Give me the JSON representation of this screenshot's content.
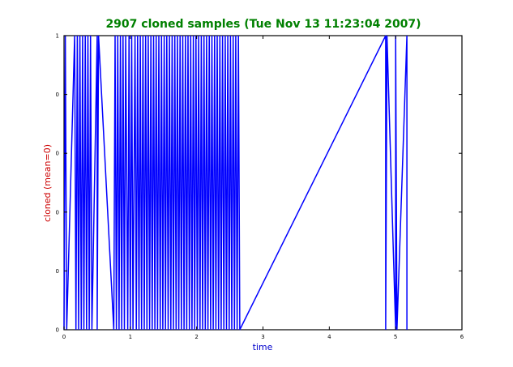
{
  "chart_data": {
    "type": "line",
    "title": "2907 cloned samples (Tue Nov 13 11:23:04 2007)",
    "xlabel": "time",
    "ylabel": "cloned (mean=0)",
    "xlim": [
      0,
      6
    ],
    "ylim": [
      0,
      1
    ],
    "xticks": [
      "0",
      "1",
      "2",
      "3",
      "4",
      "5",
      "6"
    ],
    "yticks": [
      "0",
      "0",
      "0",
      "0",
      "0",
      "1"
    ],
    "grid": false,
    "colors": {
      "title": "#008000",
      "xlabel": "#0000cc",
      "ylabel": "#cc0000",
      "line": "#0000ff",
      "frame": "#000000"
    },
    "series": [
      {
        "x": [
          0.0,
          0.02,
          0.04,
          0.16,
          0.18,
          0.2,
          0.22,
          0.24,
          0.26,
          0.28,
          0.3,
          0.32,
          0.34,
          0.36,
          0.38,
          0.4,
          0.42,
          0.5,
          0.5,
          0.52,
          0.75,
          0.77,
          0.79,
          0.81,
          0.83,
          0.85,
          0.87,
          0.89,
          0.91,
          0.93,
          0.96,
          0.98,
          1.0,
          1.02,
          1.04,
          1.07,
          1.09,
          1.11,
          1.13,
          1.15,
          1.17,
          1.19,
          1.21,
          1.23,
          1.25,
          1.27,
          1.29,
          1.31,
          1.33,
          1.35,
          1.37,
          1.39,
          1.41,
          1.43,
          1.45,
          1.47,
          1.49,
          1.51,
          1.53,
          1.55,
          1.57,
          1.59,
          1.61,
          1.63,
          1.65,
          1.67,
          1.69,
          1.71,
          1.73,
          1.75,
          1.77,
          1.79,
          1.81,
          1.83,
          1.85,
          1.87,
          1.89,
          1.91,
          1.93,
          1.95,
          1.97,
          1.99,
          2.01,
          2.03,
          2.05,
          2.07,
          2.09,
          2.11,
          2.13,
          2.15,
          2.17,
          2.19,
          2.21,
          2.23,
          2.25,
          2.27,
          2.29,
          2.31,
          2.33,
          2.35,
          2.37,
          2.39,
          2.41,
          2.43,
          2.45,
          2.47,
          2.49,
          2.51,
          2.53,
          2.55,
          2.57,
          2.59,
          2.61,
          2.63,
          2.65,
          4.85,
          4.85,
          4.87,
          5.0,
          5.0,
          5.02,
          5.17,
          5.17
        ],
        "y": [
          0,
          1,
          0,
          1,
          0,
          1,
          0,
          1,
          0,
          1,
          0,
          1,
          0,
          1,
          0,
          1,
          0,
          1,
          0,
          1,
          0,
          1,
          0,
          1,
          0,
          1,
          0,
          1,
          0,
          1,
          0,
          1,
          0,
          1,
          0,
          1,
          0,
          1,
          0,
          1,
          0,
          1,
          0,
          1,
          0,
          1,
          0,
          1,
          0,
          1,
          0,
          1,
          0,
          1,
          0,
          1,
          0,
          1,
          0,
          1,
          0,
          1,
          0,
          1,
          0,
          1,
          0,
          1,
          0,
          1,
          0,
          1,
          0,
          1,
          0,
          1,
          0,
          1,
          0,
          1,
          0,
          1,
          0,
          1,
          0,
          1,
          0,
          1,
          0,
          1,
          0,
          1,
          0,
          1,
          0,
          1,
          0,
          1,
          0,
          1,
          0,
          1,
          0,
          1,
          0,
          1,
          0,
          1,
          0,
          1,
          0,
          1,
          0,
          1,
          0,
          1,
          0,
          1,
          0,
          1,
          0,
          1,
          0
        ]
      }
    ]
  }
}
